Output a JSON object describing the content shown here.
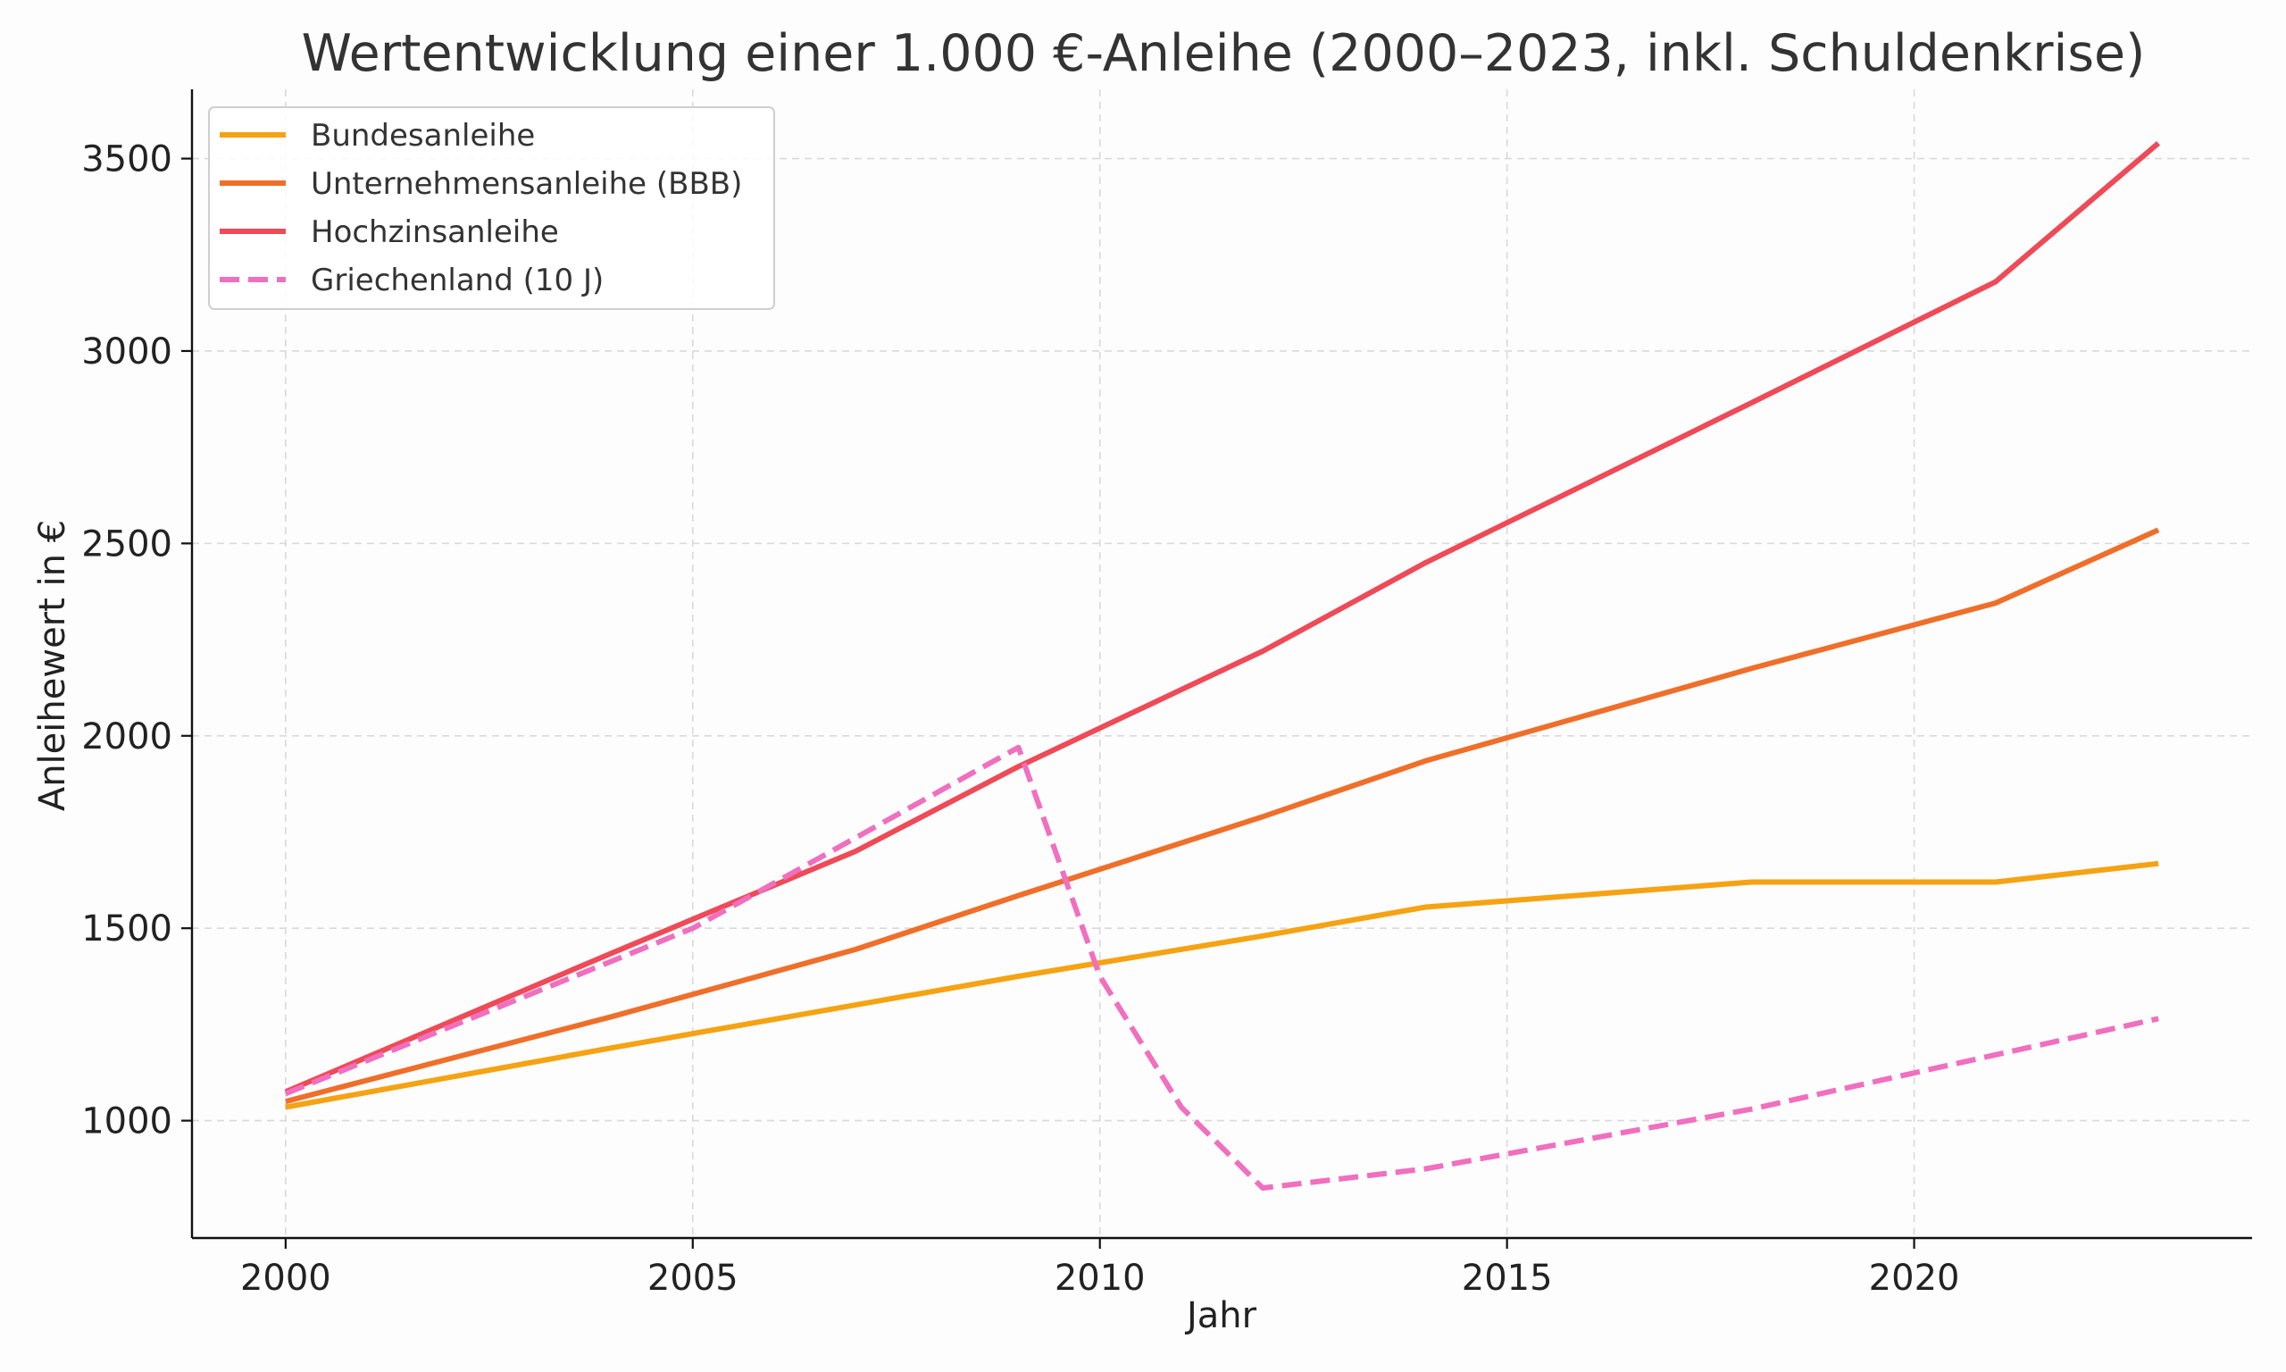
{
  "chart_data": {
    "type": "line",
    "title": "Wertentwicklung einer 1.000 €-Anleihe (2000–2023, inkl. Schuldenkrise)",
    "xlabel": "Jahr",
    "ylabel": "Anleihewert in €",
    "xlim": [
      1998.85,
      2024.15
    ],
    "ylim": [
      695,
      3680
    ],
    "xticks": [
      2000,
      2005,
      2010,
      2015,
      2020
    ],
    "yticks": [
      1000,
      1500,
      2000,
      2500,
      3000,
      3500
    ],
    "grid": true,
    "legend_position": "top-left",
    "series": [
      {
        "name": "Bundesanleihe",
        "color": "#f5a313",
        "dashed": false,
        "points": [
          [
            2000,
            1035
          ],
          [
            2004,
            1189
          ],
          [
            2009,
            1375
          ],
          [
            2012,
            1480
          ],
          [
            2014,
            1555
          ],
          [
            2018,
            1620
          ],
          [
            2021,
            1620
          ],
          [
            2023,
            1668
          ]
        ]
      },
      {
        "name": "Unternehmensanleihe (BBB)",
        "color": "#ef6f2a",
        "dashed": false,
        "points": [
          [
            2000,
            1050
          ],
          [
            2004,
            1270
          ],
          [
            2007,
            1445
          ],
          [
            2009,
            1585
          ],
          [
            2012,
            1790
          ],
          [
            2014,
            1935
          ],
          [
            2018,
            2175
          ],
          [
            2021,
            2345
          ],
          [
            2023,
            2535
          ]
        ]
      },
      {
        "name": "Hochzinsanleihe",
        "color": "#ef4a57",
        "dashed": false,
        "points": [
          [
            2000,
            1075
          ],
          [
            2004,
            1435
          ],
          [
            2007,
            1700
          ],
          [
            2009,
            1920
          ],
          [
            2012,
            2220
          ],
          [
            2014,
            2450
          ],
          [
            2018,
            2865
          ],
          [
            2021,
            3180
          ],
          [
            2023,
            3540
          ]
        ]
      },
      {
        "name": "Griechenland (10 J)",
        "color": "#f06fbf",
        "dashed": true,
        "points": [
          [
            2000,
            1070
          ],
          [
            2005,
            1500
          ],
          [
            2009,
            1970
          ],
          [
            2010,
            1375
          ],
          [
            2011,
            1035
          ],
          [
            2012,
            825
          ],
          [
            2014,
            875
          ],
          [
            2018,
            1030
          ],
          [
            2023,
            1265
          ]
        ]
      }
    ]
  }
}
